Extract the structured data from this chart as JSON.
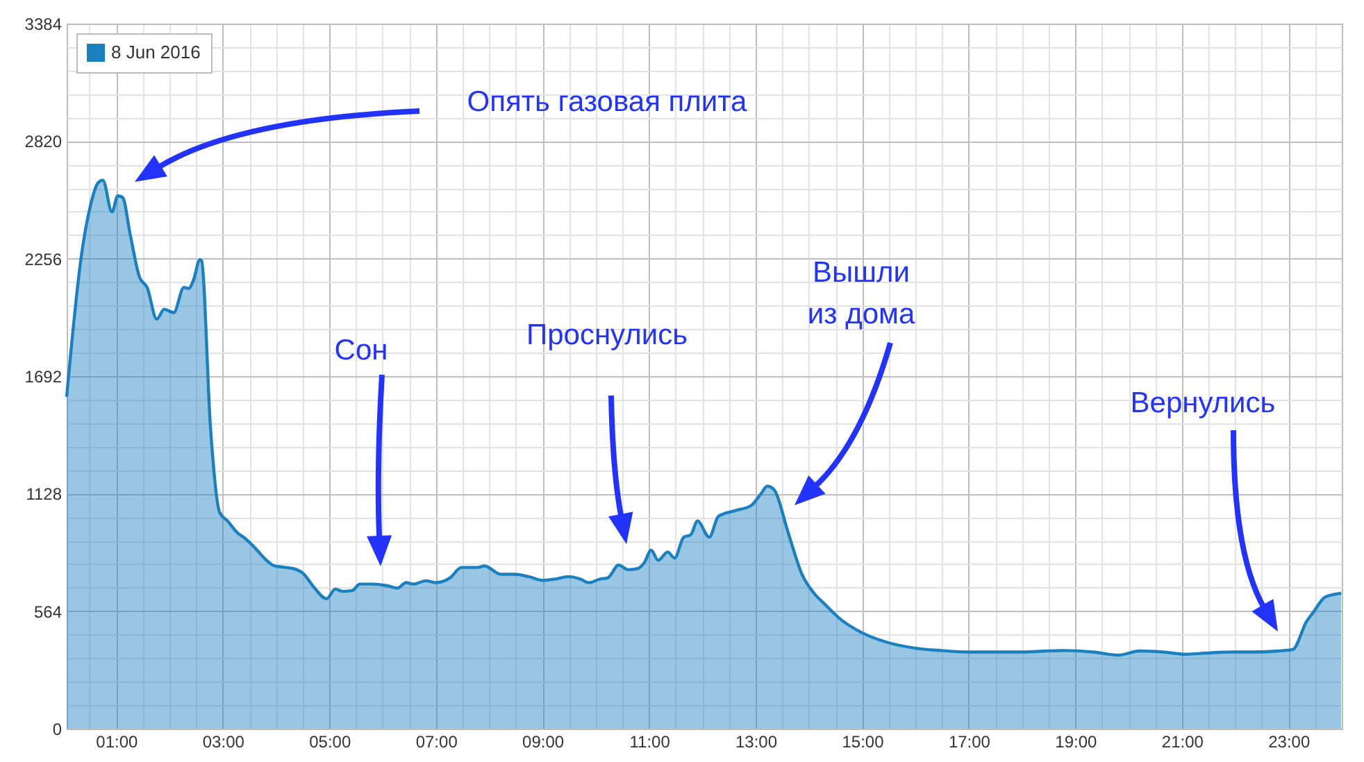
{
  "chart_data": {
    "type": "area",
    "x": [
      0.07,
      0.34,
      0.52,
      0.66,
      0.75,
      0.92,
      1.03,
      1.12,
      1.26,
      1.44,
      1.58,
      1.76,
      1.9,
      2.08,
      2.27,
      2.36,
      2.45,
      2.57,
      2.6,
      2.77,
      2.94,
      3.09,
      3.28,
      3.41,
      3.6,
      3.83,
      3.96,
      4.15,
      4.33,
      4.51,
      4.7,
      4.95,
      5.11,
      5.25,
      5.43,
      5.57,
      5.8,
      6.07,
      6.28,
      6.44,
      6.58,
      6.81,
      7.0,
      7.26,
      7.48,
      7.78,
      7.91,
      8.22,
      8.48,
      8.74,
      9.0,
      9.26,
      9.48,
      9.7,
      9.87,
      10.09,
      10.22,
      10.43,
      10.61,
      10.78,
      10.91,
      11.04,
      11.17,
      11.35,
      11.48,
      11.65,
      11.78,
      11.91,
      12.13,
      12.3,
      12.61,
      12.91,
      13.09,
      13.22,
      13.35,
      13.61,
      13.87,
      14.09,
      14.3,
      14.57,
      15.0,
      15.49,
      16.01,
      16.49,
      17.0,
      17.58,
      18.02,
      18.46,
      18.8,
      19.33,
      19.81,
      20.2,
      20.64,
      21.07,
      21.51,
      21.94,
      22.38,
      22.82,
      23.08,
      23.34,
      23.47,
      23.69,
      23.99
    ],
    "series": [
      {
        "name": "8 Jun 2016",
        "color": "#1b80c0",
        "values": [
          1593,
          2258,
          2515,
          2620,
          2632,
          2480,
          2557,
          2550,
          2375,
          2165,
          2118,
          1966,
          2013,
          1997,
          2118,
          2113,
          2153,
          2251,
          2247,
          1441,
          1039,
          997,
          939,
          915,
          869,
          806,
          782,
          775,
          768,
          745,
          682,
          624,
          670,
          659,
          663,
          694,
          694,
          687,
          675,
          701,
          694,
          710,
          701,
          723,
          774,
          774,
          781,
          741,
          741,
          730,
          712,
          719,
          730,
          719,
          701,
          719,
          723,
          785,
          763,
          768,
          797,
          857,
          808,
          848,
          819,
          919,
          930,
          997,
          919,
          1019,
          1046,
          1070,
          1124,
          1164,
          1146,
          941,
          741,
          652,
          597,
          530,
          460,
          413,
          386,
          375,
          368,
          368,
          368,
          373,
          375,
          368,
          353,
          373,
          368,
          357,
          364,
          368,
          368,
          373,
          380,
          515,
          560,
          632,
          650
        ]
      }
    ],
    "xlim": [
      0.07,
      24.0
    ],
    "xticks": [
      {
        "value": 0.5,
        "label": null
      },
      {
        "value": 1,
        "label": "01:00"
      },
      {
        "value": 1.5,
        "label": null
      },
      {
        "value": 2,
        "label": null
      },
      {
        "value": 2.5,
        "label": null
      },
      {
        "value": 3,
        "label": "03:00"
      },
      {
        "value": 3.5,
        "label": null
      },
      {
        "value": 4,
        "label": null
      },
      {
        "value": 4.5,
        "label": null
      },
      {
        "value": 5,
        "label": "05:00"
      },
      {
        "value": 5.5,
        "label": null
      },
      {
        "value": 6,
        "label": null
      },
      {
        "value": 6.5,
        "label": null
      },
      {
        "value": 7,
        "label": "07:00"
      },
      {
        "value": 7.5,
        "label": null
      },
      {
        "value": 8,
        "label": null
      },
      {
        "value": 8.5,
        "label": null
      },
      {
        "value": 9,
        "label": "09:00"
      },
      {
        "value": 9.5,
        "label": null
      },
      {
        "value": 10,
        "label": null
      },
      {
        "value": 10.5,
        "label": null
      },
      {
        "value": 11,
        "label": "11:00"
      },
      {
        "value": 11.5,
        "label": null
      },
      {
        "value": 12,
        "label": null
      },
      {
        "value": 12.5,
        "label": null
      },
      {
        "value": 13,
        "label": "13:00"
      },
      {
        "value": 13.5,
        "label": null
      },
      {
        "value": 14,
        "label": null
      },
      {
        "value": 14.5,
        "label": null
      },
      {
        "value": 15,
        "label": "15:00"
      },
      {
        "value": 15.5,
        "label": null
      },
      {
        "value": 16,
        "label": null
      },
      {
        "value": 16.5,
        "label": null
      },
      {
        "value": 17,
        "label": "17:00"
      },
      {
        "value": 17.5,
        "label": null
      },
      {
        "value": 18,
        "label": null
      },
      {
        "value": 18.5,
        "label": null
      },
      {
        "value": 19,
        "label": "19:00"
      },
      {
        "value": 19.5,
        "label": null
      },
      {
        "value": 20,
        "label": null
      },
      {
        "value": 20.5,
        "label": null
      },
      {
        "value": 21,
        "label": "21:00"
      },
      {
        "value": 21.5,
        "label": null
      },
      {
        "value": 22,
        "label": null
      },
      {
        "value": 22.5,
        "label": null
      },
      {
        "value": 23,
        "label": "23:00"
      },
      {
        "value": 23.5,
        "label": null
      }
    ],
    "ylim": [
      0,
      3384
    ],
    "yticks": [
      0,
      {
        "value": 112.8,
        "label": null
      },
      {
        "value": 225.6,
        "label": null
      },
      {
        "value": 338.4,
        "label": null
      },
      {
        "value": 451.2,
        "label": null
      },
      564,
      {
        "value": 676.8,
        "label": null
      },
      {
        "value": 789.6,
        "label": null
      },
      {
        "value": 902.4,
        "label": null
      },
      {
        "value": 1015.2,
        "label": null
      },
      1128,
      {
        "value": 1240.8,
        "label": null
      },
      {
        "value": 1353.6,
        "label": null
      },
      {
        "value": 1466.4,
        "label": null
      },
      {
        "value": 1579.2,
        "label": null
      },
      1692,
      {
        "value": 1804.8,
        "label": null
      },
      {
        "value": 1917.6,
        "label": null
      },
      {
        "value": 2030.4,
        "label": null
      },
      {
        "value": 2143.2,
        "label": null
      },
      2256,
      {
        "value": 2368.8,
        "label": null
      },
      {
        "value": 2481.6,
        "label": null
      },
      {
        "value": 2594.4,
        "label": null
      },
      {
        "value": 2707.2,
        "label": null
      },
      2820,
      {
        "value": 2932.8,
        "label": null
      },
      {
        "value": 3045.6,
        "label": null
      },
      {
        "value": 3158.4,
        "label": null
      },
      {
        "value": 3271.2,
        "label": null
      },
      3384
    ],
    "grid": true,
    "legend": "top left",
    "annotations": [
      "Опять газовая плита",
      "Сон",
      "Проснулись",
      "Вышли\nиз дома",
      "Вернулись"
    ]
  }
}
